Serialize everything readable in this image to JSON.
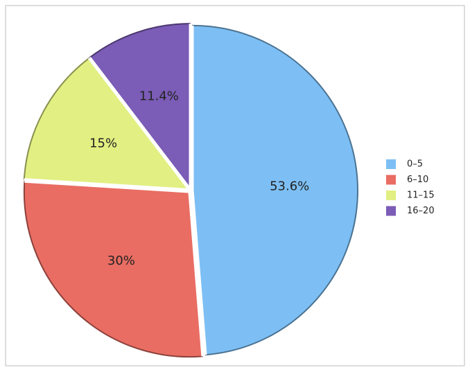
{
  "chart_data": {
    "type": "pie",
    "categories": [
      "0–5",
      "6–10",
      "11–15",
      "16–20"
    ],
    "values": [
      53.6,
      30,
      15,
      11.4
    ],
    "value_labels": [
      "53.6%",
      "30%",
      "15%",
      "11.4%"
    ],
    "colors": [
      "#7dbff4",
      "#e96d63",
      "#e2ef82",
      "#7b5cb6"
    ],
    "legend": "right"
  }
}
